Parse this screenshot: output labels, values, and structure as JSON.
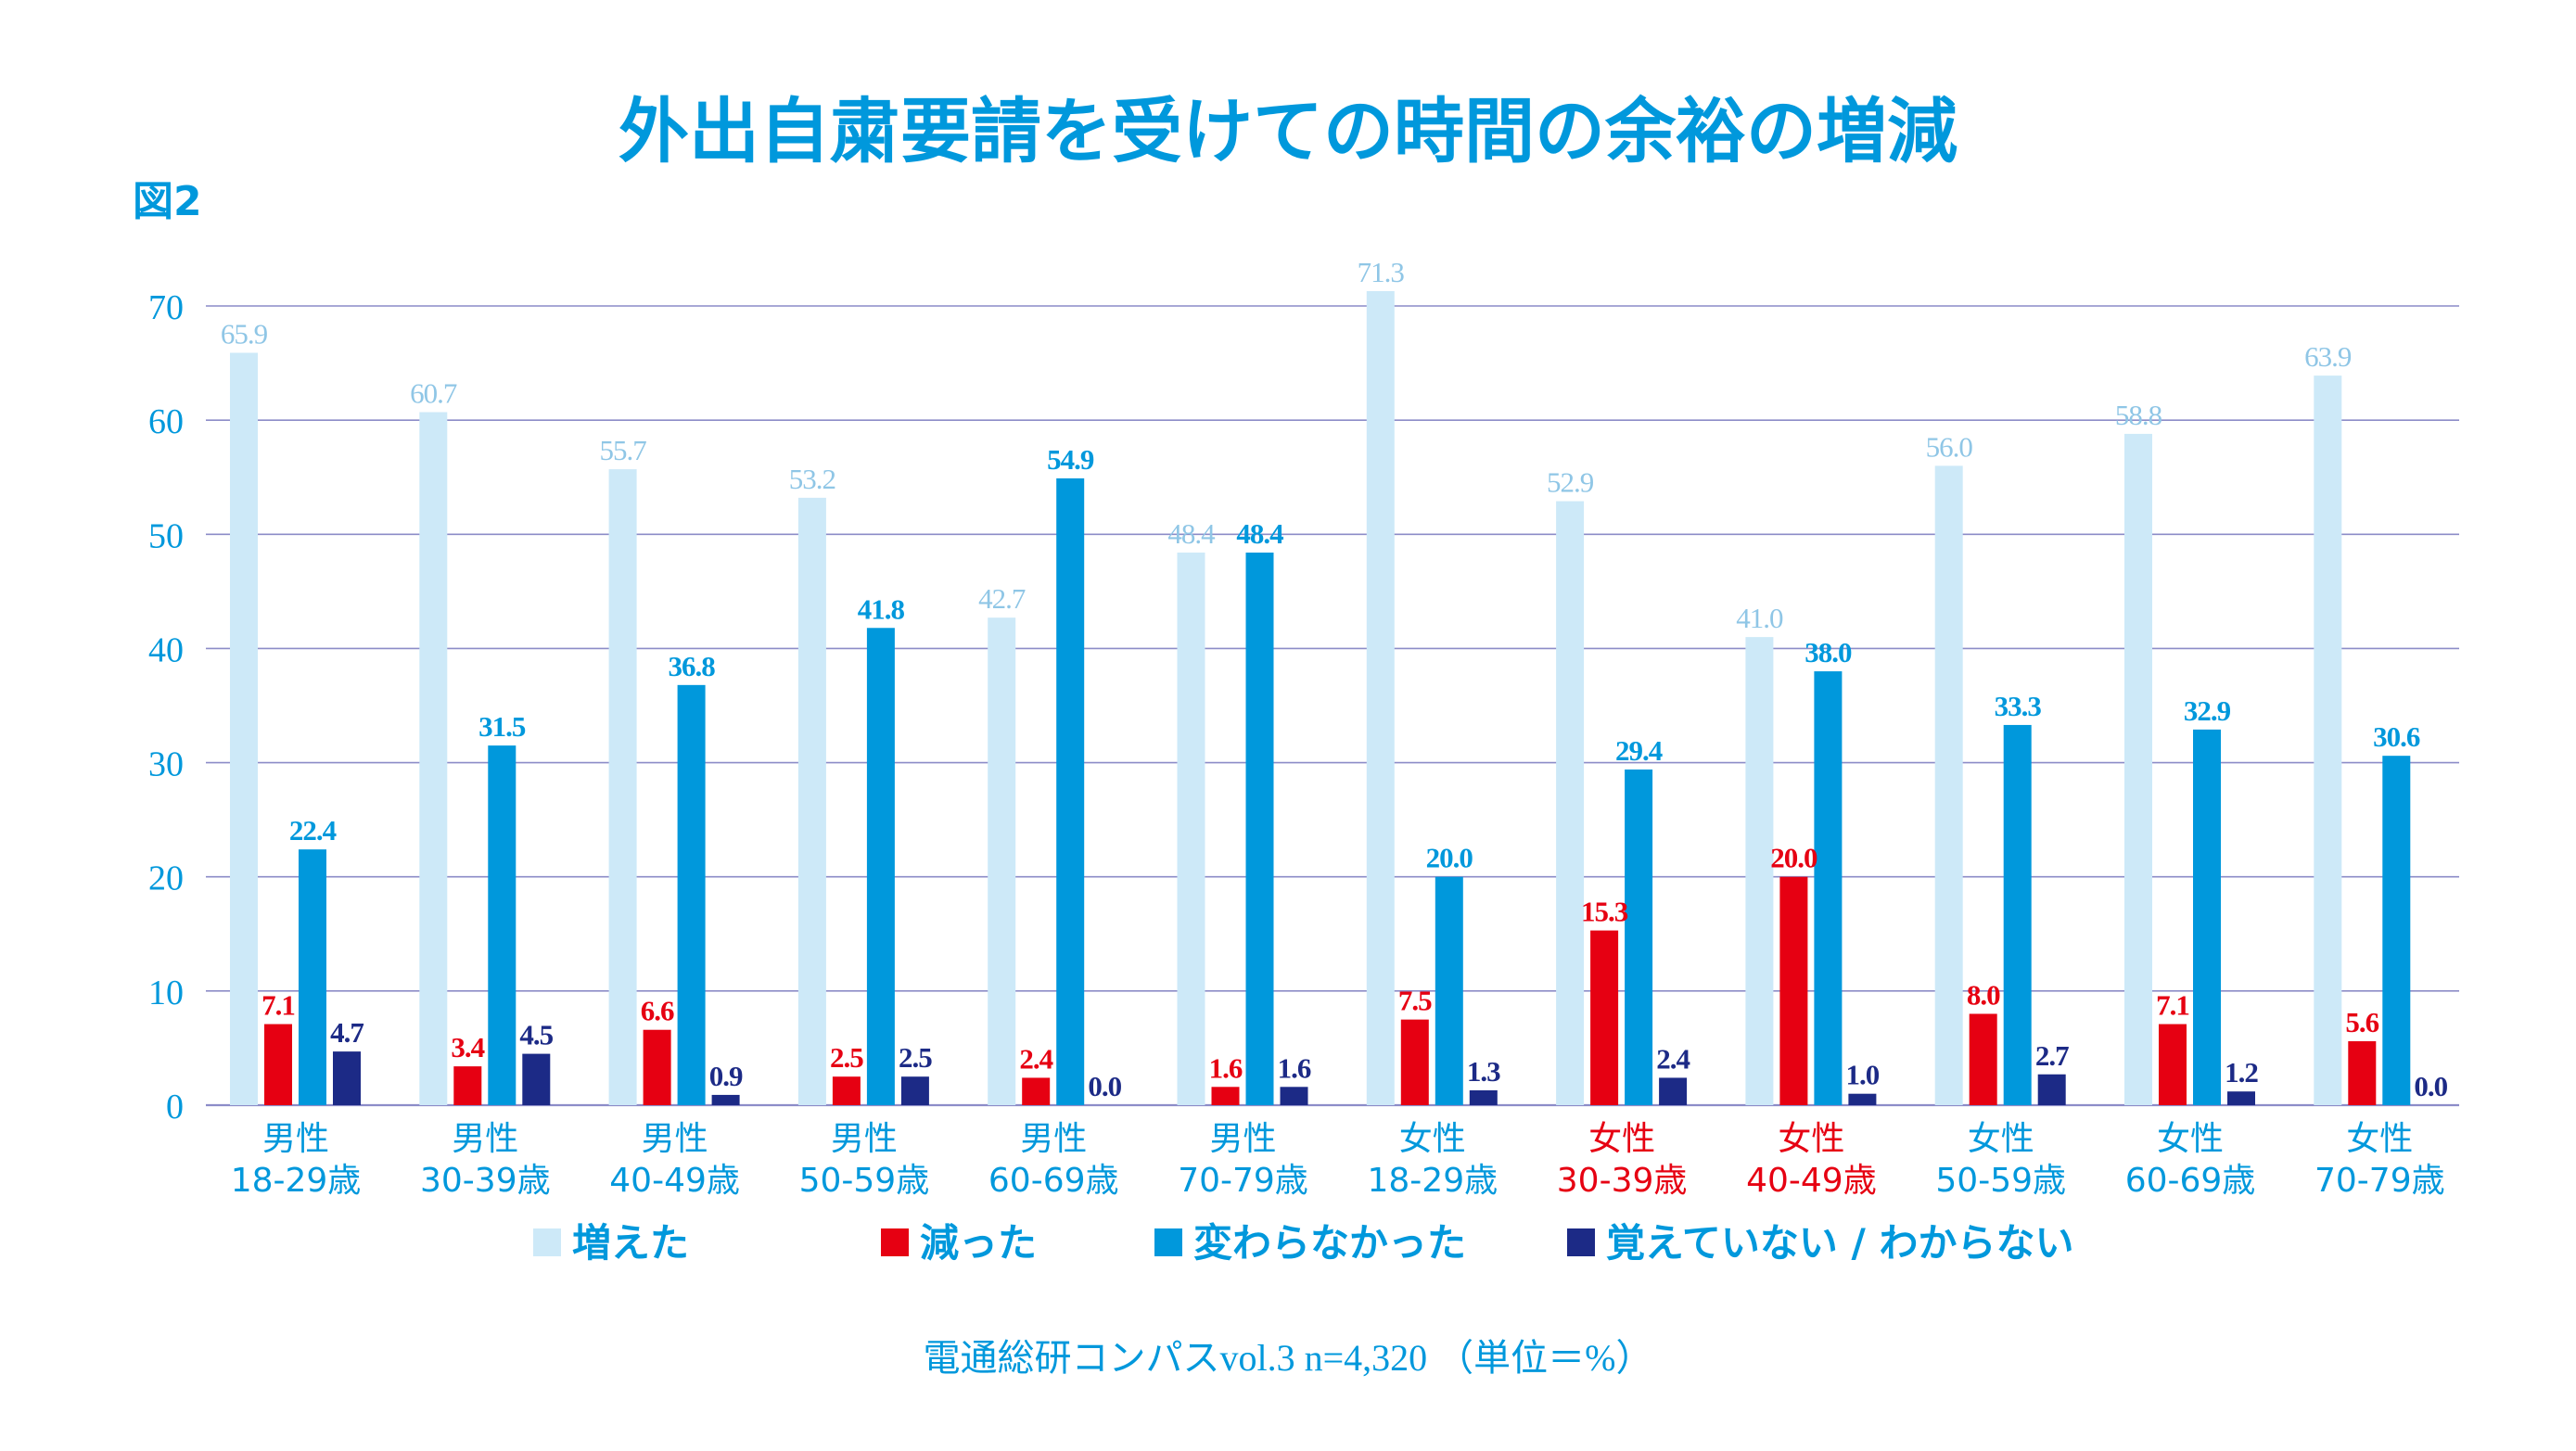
{
  "figure_label": "図2",
  "source_note": "電通総研コンパスvol.3 n=4,320 （単位＝%）",
  "colors": {
    "increased": "#cde9f8",
    "decreased": "#e60012",
    "unchanged": "#0098dc",
    "unknown": "#1c2a86",
    "axis_text": "#0098dc",
    "grid": "#8c8cc8",
    "label_increased": "#8fc6e6",
    "label_decreased": "#e60012",
    "label_unchanged": "#0098dc",
    "label_unknown": "#1c2a86"
  },
  "chart_data": {
    "type": "bar",
    "title": "外出自粛要請を受けての時間の余裕の増減",
    "xlabel": "",
    "ylabel": "",
    "ylim": [
      0,
      70
    ],
    "yticks": [
      0,
      10,
      20,
      30,
      40,
      50,
      60,
      70
    ],
    "grid": true,
    "legend_position": "bottom",
    "categories": [
      {
        "gender": "男性",
        "age": "18-29歳",
        "highlight": false
      },
      {
        "gender": "男性",
        "age": "30-39歳",
        "highlight": false
      },
      {
        "gender": "男性",
        "age": "40-49歳",
        "highlight": false
      },
      {
        "gender": "男性",
        "age": "50-59歳",
        "highlight": false
      },
      {
        "gender": "男性",
        "age": "60-69歳",
        "highlight": false
      },
      {
        "gender": "男性",
        "age": "70-79歳",
        "highlight": false
      },
      {
        "gender": "女性",
        "age": "18-29歳",
        "highlight": false
      },
      {
        "gender": "女性",
        "age": "30-39歳",
        "highlight": true
      },
      {
        "gender": "女性",
        "age": "40-49歳",
        "highlight": true
      },
      {
        "gender": "女性",
        "age": "50-59歳",
        "highlight": false
      },
      {
        "gender": "女性",
        "age": "60-69歳",
        "highlight": false
      },
      {
        "gender": "女性",
        "age": "70-79歳",
        "highlight": false
      }
    ],
    "series": [
      {
        "key": "increased",
        "name": "増えた",
        "values": [
          65.9,
          60.7,
          55.7,
          53.2,
          42.7,
          48.4,
          71.3,
          52.9,
          41.0,
          56.0,
          58.8,
          63.9
        ],
        "labels": [
          "65.9",
          "60.7",
          "55.7",
          "53.2",
          "42.7",
          "48.4",
          "71.3",
          "52.9",
          "41.0",
          "56.0",
          "58.8",
          "63.9"
        ]
      },
      {
        "key": "decreased",
        "name": "減った",
        "values": [
          7.1,
          3.4,
          6.6,
          2.5,
          2.4,
          1.6,
          7.5,
          15.3,
          20.0,
          8.0,
          7.1,
          5.6
        ],
        "labels": [
          "7.1",
          "3.4",
          "6.6",
          "2.5",
          "2.4",
          "1.6",
          "7.5",
          "15.3",
          "20.0",
          "8.0",
          "7.1",
          "5.6"
        ]
      },
      {
        "key": "unchanged",
        "name": "変わらなかった",
        "values": [
          22.4,
          31.5,
          36.8,
          41.8,
          54.9,
          48.4,
          20.0,
          29.4,
          38.0,
          33.3,
          32.9,
          30.6
        ],
        "labels": [
          "22.4",
          "31.5",
          "36.8",
          "41.8",
          "54.9",
          "48.4",
          "20.0",
          "29.4",
          "38.0",
          "33.3",
          "32.9",
          "30.6"
        ]
      },
      {
        "key": "unknown",
        "name": "覚えていない / わからない",
        "values": [
          4.7,
          4.5,
          0.9,
          2.5,
          0.0,
          1.6,
          1.3,
          2.4,
          1.0,
          2.7,
          1.2,
          0.0
        ],
        "labels": [
          "4.7",
          "4.5",
          "0.9",
          "2.5",
          "0.0",
          "1.6",
          "1.3",
          "2.4",
          "1.0",
          "2.7",
          "1.2",
          "0.0"
        ]
      }
    ]
  }
}
